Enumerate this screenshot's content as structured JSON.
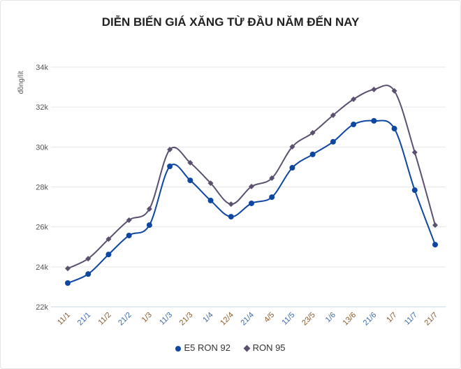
{
  "chart_data": {
    "type": "line",
    "title": "DIỄN BIẾN GIÁ XĂNG TỪ ĐẦU NĂM ĐẾN NAY",
    "xlabel": "",
    "ylabel": "đồng/lít",
    "ylim": [
      22000,
      34000
    ],
    "yticks": [
      22000,
      24000,
      26000,
      28000,
      30000,
      32000,
      34000
    ],
    "ytick_labels": [
      "22k",
      "24k",
      "26k",
      "28k",
      "30k",
      "32k",
      "34k"
    ],
    "grid": true,
    "legend": "bottom-center",
    "categories": [
      "11/1",
      "21/1",
      "11/2",
      "21/2",
      "1/3",
      "11/3",
      "21/3",
      "1/4",
      "12/4",
      "21/4",
      "4/5",
      "11/5",
      "23/5",
      "1/6",
      "13/6",
      "21/6",
      "1/7",
      "11/7",
      "21/7"
    ],
    "series": [
      {
        "name": "E5 RON 92",
        "color": "#0d47a1",
        "marker": "circle",
        "values": [
          23190,
          23640,
          24620,
          25570,
          26090,
          29030,
          28330,
          27320,
          26510,
          27180,
          27490,
          28960,
          29630,
          30260,
          31130,
          31310,
          30920,
          27840,
          25110
        ]
      },
      {
        "name": "RON 95",
        "color": "#5b5070",
        "marker": "diamond",
        "values": [
          23920,
          24410,
          25390,
          26340,
          26900,
          29870,
          29210,
          28190,
          27140,
          28020,
          28440,
          30010,
          30710,
          31590,
          32390,
          32880,
          32810,
          29730,
          26090
        ]
      }
    ]
  }
}
